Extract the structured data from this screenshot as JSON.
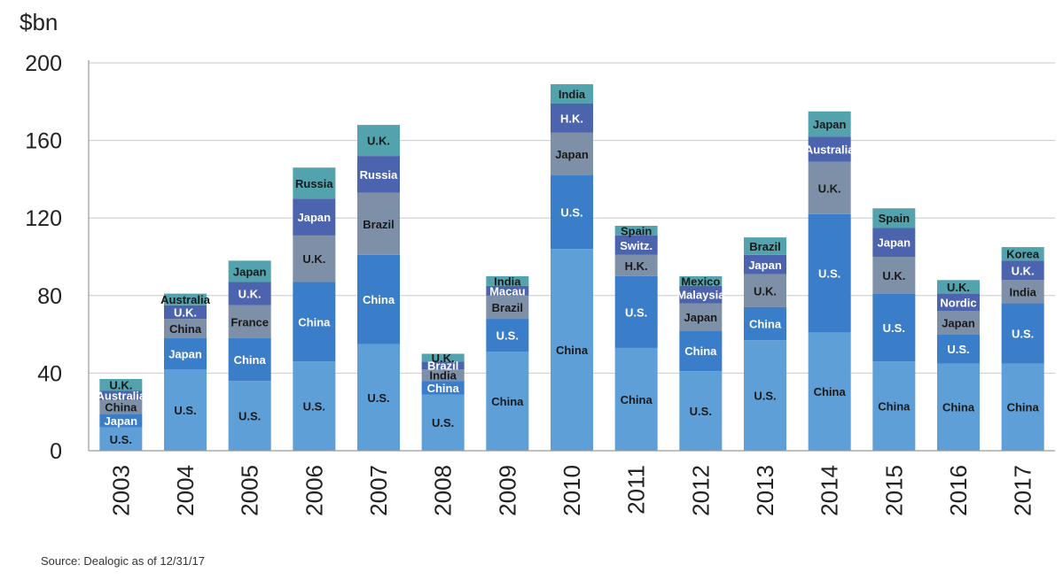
{
  "unit_label": "$bn",
  "source": "Source: Dealogic as of 12/31/17",
  "colors": {
    "level1": "#5f9fd8",
    "level2": "#3a7dc9",
    "level3": "#7d90a8",
    "level4": "#4c63ad",
    "level5": "#52a3ad",
    "label_light": "#1a1a1a",
    "label_dark": "#ffffff",
    "grid": "#c9c9c9",
    "axis": "#9a9a9a"
  },
  "chart_data": {
    "type": "bar",
    "stacked": true,
    "title": "",
    "ylabel": "$bn",
    "xlabel": "",
    "ylim": [
      0,
      200
    ],
    "yticks": [
      0,
      40,
      80,
      120,
      160,
      200
    ],
    "grid": true,
    "categories": [
      "2003",
      "2004",
      "2005",
      "2006",
      "2007",
      "2008",
      "2009",
      "2010",
      "2011",
      "2012",
      "2013",
      "2014",
      "2015",
      "2016",
      "2017"
    ],
    "stacks": [
      {
        "year": "2003",
        "segments": [
          {
            "label": "U.S.",
            "value": 12
          },
          {
            "label": "Japan",
            "value": 7
          },
          {
            "label": "China",
            "value": 7
          },
          {
            "label": "Australia",
            "value": 5
          },
          {
            "label": "U.K.",
            "value": 6
          }
        ]
      },
      {
        "year": "2004",
        "segments": [
          {
            "label": "U.S.",
            "value": 42
          },
          {
            "label": "Japan",
            "value": 16
          },
          {
            "label": "China",
            "value": 10
          },
          {
            "label": "U.K.",
            "value": 7
          },
          {
            "label": "Australia",
            "value": 6
          }
        ]
      },
      {
        "year": "2005",
        "segments": [
          {
            "label": "U.S.",
            "value": 36
          },
          {
            "label": "China",
            "value": 22
          },
          {
            "label": "France",
            "value": 17
          },
          {
            "label": "U.K.",
            "value": 12
          },
          {
            "label": "Japan",
            "value": 11
          }
        ]
      },
      {
        "year": "2006",
        "segments": [
          {
            "label": "U.S.",
            "value": 46
          },
          {
            "label": "China",
            "value": 41
          },
          {
            "label": "U.K.",
            "value": 24
          },
          {
            "label": "Japan",
            "value": 19
          },
          {
            "label": "Russia",
            "value": 16
          }
        ]
      },
      {
        "year": "2007",
        "segments": [
          {
            "label": "U.S.",
            "value": 55
          },
          {
            "label": "China",
            "value": 46
          },
          {
            "label": "Brazil",
            "value": 32
          },
          {
            "label": "Russia",
            "value": 19
          },
          {
            "label": "U.K.",
            "value": 16
          }
        ]
      },
      {
        "year": "2008",
        "segments": [
          {
            "label": "U.S.",
            "value": 29
          },
          {
            "label": "China",
            "value": 7
          },
          {
            "label": "India",
            "value": 6
          },
          {
            "label": "Brazil",
            "value": 4
          },
          {
            "label": "U.K.",
            "value": 4
          }
        ]
      },
      {
        "year": "2009",
        "segments": [
          {
            "label": "China",
            "value": 51
          },
          {
            "label": "U.S.",
            "value": 17
          },
          {
            "label": "Brazil",
            "value": 12
          },
          {
            "label": "Macau",
            "value": 5
          },
          {
            "label": "India",
            "value": 5
          }
        ]
      },
      {
        "year": "2010",
        "segments": [
          {
            "label": "China",
            "value": 104
          },
          {
            "label": "U.S.",
            "value": 38
          },
          {
            "label": "Japan",
            "value": 22
          },
          {
            "label": "H.K.",
            "value": 15
          },
          {
            "label": "India",
            "value": 10
          }
        ]
      },
      {
        "year": "2011",
        "segments": [
          {
            "label": "China",
            "value": 53
          },
          {
            "label": "U.S.",
            "value": 37
          },
          {
            "label": "H.K.",
            "value": 11
          },
          {
            "label": "Switz.",
            "value": 10
          },
          {
            "label": "Spain",
            "value": 5
          }
        ]
      },
      {
        "year": "2012",
        "segments": [
          {
            "label": "U.S.",
            "value": 41
          },
          {
            "label": "China",
            "value": 21
          },
          {
            "label": "Japan",
            "value": 14
          },
          {
            "label": "Malaysia",
            "value": 9
          },
          {
            "label": "Mexico",
            "value": 5
          }
        ]
      },
      {
        "year": "2013",
        "segments": [
          {
            "label": "U.S.",
            "value": 57
          },
          {
            "label": "China",
            "value": 17
          },
          {
            "label": "U.K.",
            "value": 17
          },
          {
            "label": "Japan",
            "value": 10
          },
          {
            "label": "Brazil",
            "value": 9
          }
        ]
      },
      {
        "year": "2014",
        "segments": [
          {
            "label": "China",
            "value": 61
          },
          {
            "label": "U.S.",
            "value": 61
          },
          {
            "label": "U.K.",
            "value": 27
          },
          {
            "label": "Australia",
            "value": 13
          },
          {
            "label": "Japan",
            "value": 13
          }
        ]
      },
      {
        "year": "2015",
        "segments": [
          {
            "label": "China",
            "value": 46
          },
          {
            "label": "U.S.",
            "value": 35
          },
          {
            "label": "U.K.",
            "value": 19
          },
          {
            "label": "Japan",
            "value": 15
          },
          {
            "label": "Spain",
            "value": 10
          }
        ]
      },
      {
        "year": "2016",
        "segments": [
          {
            "label": "China",
            "value": 45
          },
          {
            "label": "U.S.",
            "value": 15
          },
          {
            "label": "Japan",
            "value": 12
          },
          {
            "label": "Nordic",
            "value": 9
          },
          {
            "label": "U.K.",
            "value": 7
          }
        ]
      },
      {
        "year": "2017",
        "segments": [
          {
            "label": "China",
            "value": 45
          },
          {
            "label": "U.S.",
            "value": 31
          },
          {
            "label": "India",
            "value": 12
          },
          {
            "label": "U.K.",
            "value": 10
          },
          {
            "label": "Korea",
            "value": 7
          }
        ]
      }
    ]
  }
}
